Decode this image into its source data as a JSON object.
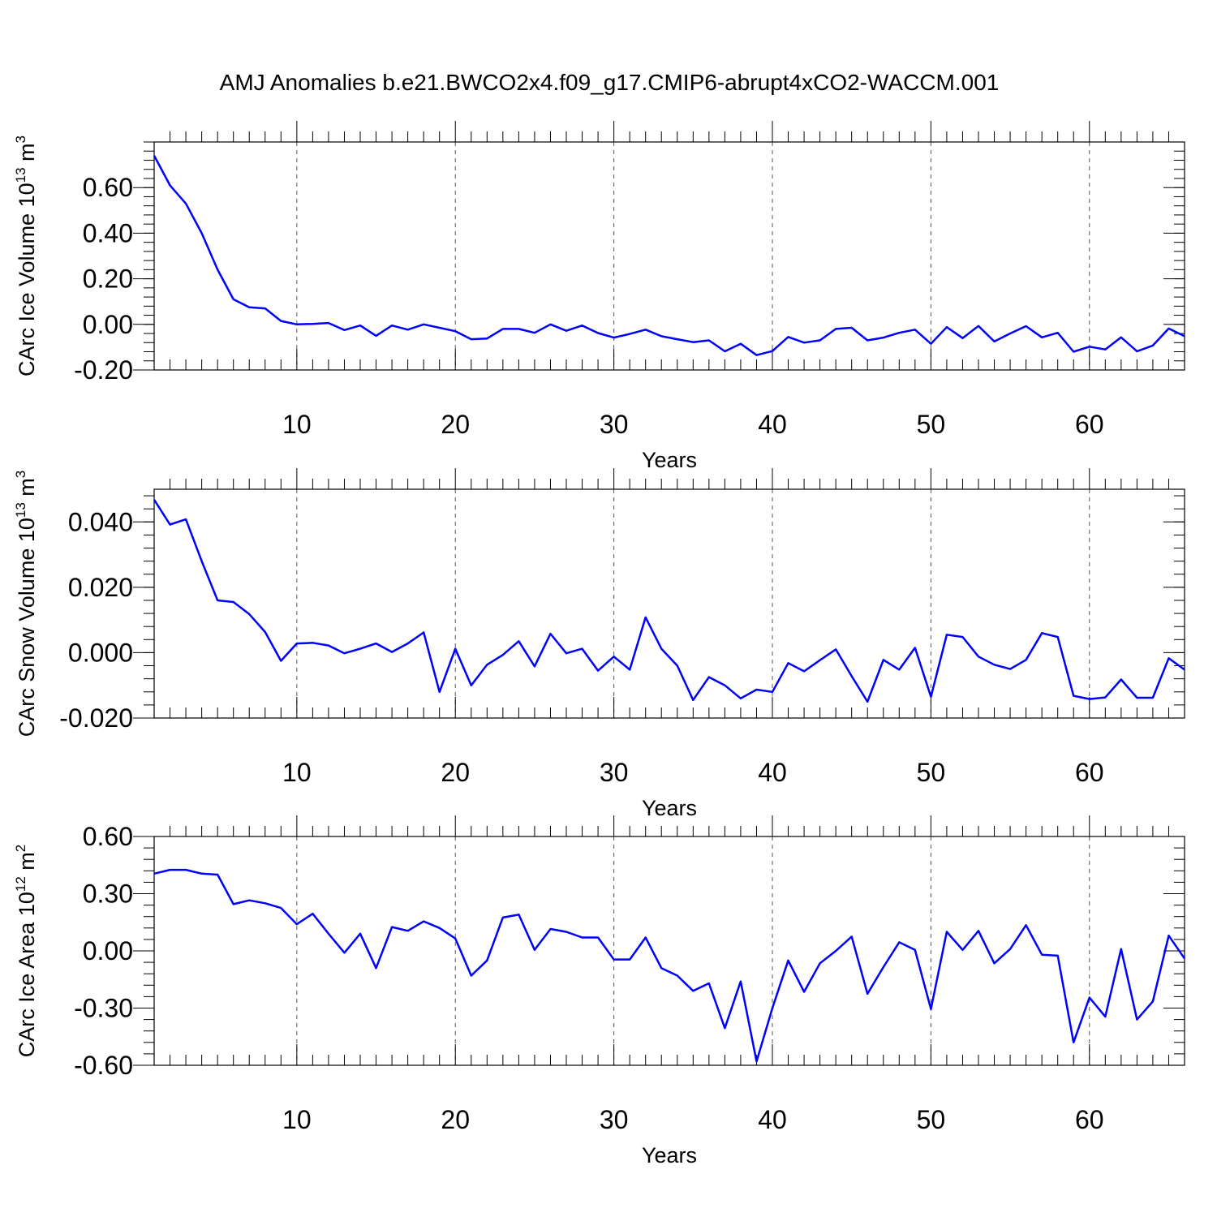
{
  "title": "AMJ Anomalies b.e21.BWCO2x4.f09_g17.CMIP6-abrupt4xCO2-WACCM.001",
  "line_color": "#0000ff",
  "chart_data": [
    {
      "type": "line",
      "xlabel": "Years",
      "ylabel_parts": [
        "CArc Ice Volume 10",
        "13",
        " m",
        "3"
      ],
      "xlim": [
        1,
        66
      ],
      "ylim": [
        -0.2,
        0.8
      ],
      "xticks": [
        10,
        20,
        30,
        40,
        50,
        60
      ],
      "xtick_labels": [
        "10",
        "20",
        "30",
        "40",
        "50",
        "60"
      ],
      "yticks": [
        -0.2,
        0.0,
        0.2,
        0.4,
        0.6
      ],
      "ytick_labels": [
        "-0.20",
        "0.00",
        "0.20",
        "0.40",
        "0.60"
      ],
      "grid": "x-dashed",
      "series": [
        {
          "x": [
            1,
            2,
            3,
            4,
            5,
            6,
            7,
            8,
            9,
            10,
            11,
            12,
            13,
            14,
            15,
            16,
            17,
            18,
            19,
            20,
            21,
            22,
            23,
            24,
            25,
            26,
            27,
            28,
            29,
            30,
            31,
            32,
            33,
            34,
            35,
            36,
            37,
            38,
            39,
            40,
            41,
            42,
            43,
            44,
            45,
            46,
            47,
            48,
            49,
            50,
            51,
            52,
            53,
            54,
            55,
            56,
            57,
            58,
            59,
            60,
            61,
            62,
            63,
            64,
            65,
            66
          ],
          "values": [
            0.74,
            0.61,
            0.53,
            0.4,
            0.24,
            0.11,
            0.075,
            0.07,
            0.015,
            0.0,
            0.002,
            0.006,
            -0.025,
            -0.005,
            -0.05,
            -0.005,
            -0.023,
            0.0,
            -0.015,
            -0.03,
            -0.065,
            -0.062,
            -0.02,
            -0.02,
            -0.037,
            0.0,
            -0.028,
            -0.005,
            -0.038,
            -0.058,
            -0.042,
            -0.023,
            -0.052,
            -0.065,
            -0.078,
            -0.07,
            -0.118,
            -0.085,
            -0.135,
            -0.117,
            -0.055,
            -0.08,
            -0.07,
            -0.02,
            -0.015,
            -0.07,
            -0.058,
            -0.037,
            -0.023,
            -0.085,
            -0.012,
            -0.06,
            -0.007,
            -0.075,
            -0.04,
            -0.008,
            -0.057,
            -0.037,
            -0.12,
            -0.098,
            -0.11,
            -0.057,
            -0.118,
            -0.093,
            -0.018,
            -0.052
          ]
        }
      ]
    },
    {
      "type": "line",
      "xlabel": "Years",
      "ylabel_parts": [
        "CArc Snow Volume 10",
        "13",
        " m",
        "3"
      ],
      "xlim": [
        1,
        66
      ],
      "ylim": [
        -0.02,
        0.05
      ],
      "xticks": [
        10,
        20,
        30,
        40,
        50,
        60
      ],
      "xtick_labels": [
        "10",
        "20",
        "30",
        "40",
        "50",
        "60"
      ],
      "yticks": [
        -0.02,
        0.0,
        0.02,
        0.04
      ],
      "ytick_labels": [
        "-0.020",
        "0.000",
        "0.020",
        "0.040"
      ],
      "grid": "x-dashed",
      "series": [
        {
          "x": [
            1,
            2,
            3,
            4,
            5,
            6,
            7,
            8,
            9,
            10,
            11,
            12,
            13,
            14,
            15,
            16,
            17,
            18,
            19,
            20,
            21,
            22,
            23,
            24,
            25,
            26,
            27,
            28,
            29,
            30,
            31,
            32,
            33,
            34,
            35,
            36,
            37,
            38,
            39,
            40,
            41,
            42,
            43,
            44,
            45,
            46,
            47,
            48,
            49,
            50,
            51,
            52,
            53,
            54,
            55,
            56,
            57,
            58,
            59,
            60,
            61,
            62,
            63,
            64,
            65,
            66
          ],
          "values": [
            0.0468,
            0.0392,
            0.0408,
            0.028,
            0.016,
            0.0155,
            0.0118,
            0.0063,
            -0.0025,
            0.0028,
            0.003,
            0.0022,
            -0.0002,
            0.0012,
            0.0028,
            0.0002,
            0.0028,
            0.0062,
            -0.012,
            0.0012,
            -0.01,
            -0.0037,
            -0.0007,
            0.0035,
            -0.0042,
            0.0058,
            -0.0002,
            0.0012,
            -0.0055,
            -0.0012,
            -0.0052,
            0.0108,
            0.0012,
            -0.004,
            -0.0145,
            -0.0075,
            -0.01,
            -0.014,
            -0.0113,
            -0.012,
            -0.0032,
            -0.0057,
            -0.0023,
            0.001,
            -0.0072,
            -0.015,
            -0.0022,
            -0.0052,
            0.0015,
            -0.0135,
            0.0055,
            0.0048,
            -0.0012,
            -0.0037,
            -0.005,
            -0.0022,
            0.006,
            0.0048,
            -0.0132,
            -0.0142,
            -0.0137,
            -0.0082,
            -0.0138,
            -0.0138,
            -0.0017,
            -0.0052
          ]
        }
      ]
    },
    {
      "type": "line",
      "xlabel": "Years",
      "ylabel_parts": [
        "CArc Ice Area 10",
        "12",
        " m",
        "2"
      ],
      "xlim": [
        1,
        66
      ],
      "ylim": [
        -0.6,
        0.6
      ],
      "xticks": [
        10,
        20,
        30,
        40,
        50,
        60
      ],
      "xtick_labels": [
        "10",
        "20",
        "30",
        "40",
        "50",
        "60"
      ],
      "yticks": [
        -0.6,
        -0.3,
        0.0,
        0.3,
        0.6
      ],
      "ytick_labels": [
        "-0.60",
        "-0.30",
        "0.00",
        "0.30",
        "0.60"
      ],
      "grid": "x-dashed",
      "series": [
        {
          "x": [
            1,
            2,
            3,
            4,
            5,
            6,
            7,
            8,
            9,
            10,
            11,
            12,
            13,
            14,
            15,
            16,
            17,
            18,
            19,
            20,
            21,
            22,
            23,
            24,
            25,
            26,
            27,
            28,
            29,
            30,
            31,
            32,
            33,
            34,
            35,
            36,
            37,
            38,
            39,
            40,
            41,
            42,
            43,
            44,
            45,
            46,
            47,
            48,
            49,
            50,
            51,
            52,
            53,
            54,
            55,
            56,
            57,
            58,
            59,
            60,
            61,
            62,
            63,
            64,
            65,
            66
          ],
          "values": [
            0.405,
            0.425,
            0.425,
            0.405,
            0.4,
            0.245,
            0.265,
            0.25,
            0.225,
            0.14,
            0.195,
            0.09,
            -0.01,
            0.09,
            -0.09,
            0.125,
            0.105,
            0.155,
            0.12,
            0.065,
            -0.13,
            -0.05,
            0.175,
            0.19,
            0.005,
            0.115,
            0.1,
            0.07,
            0.07,
            -0.045,
            -0.045,
            0.07,
            -0.09,
            -0.13,
            -0.21,
            -0.17,
            -0.405,
            -0.16,
            -0.58,
            -0.3,
            -0.05,
            -0.215,
            -0.065,
            0.0,
            0.075,
            -0.225,
            -0.085,
            0.045,
            0.005,
            -0.305,
            0.1,
            0.005,
            0.105,
            -0.065,
            0.01,
            0.135,
            -0.02,
            -0.025,
            -0.48,
            -0.245,
            -0.345,
            0.01,
            -0.36,
            -0.265,
            0.08,
            -0.04
          ]
        }
      ]
    }
  ]
}
